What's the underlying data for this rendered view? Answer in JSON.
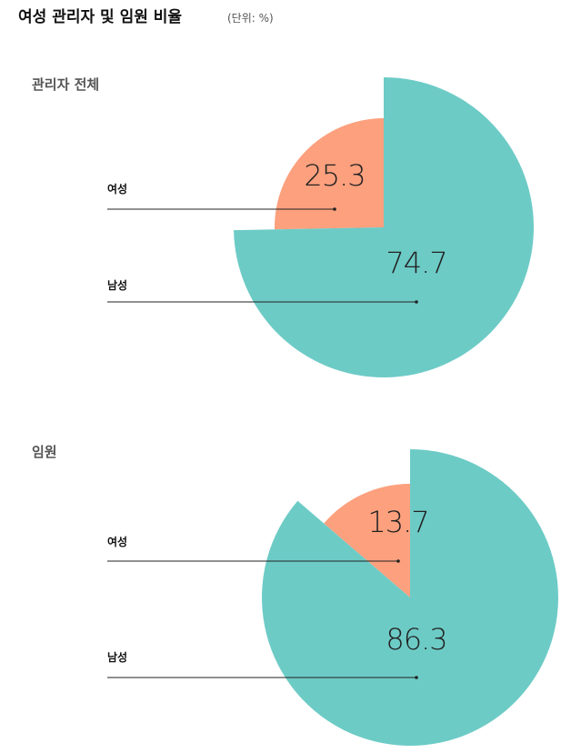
{
  "header": {
    "title": "여성 관리자 및 임원 비율",
    "unit": "(단위: %)"
  },
  "chart_data": [
    {
      "type": "pie",
      "subtitle": "관리자 전체",
      "categories": [
        "여성",
        "남성"
      ],
      "values": [
        25.3,
        74.7
      ],
      "colors": [
        "#fca07e",
        "#6dcbc6"
      ]
    },
    {
      "type": "pie",
      "subtitle": "임원",
      "categories": [
        "여성",
        "남성"
      ],
      "values": [
        13.7,
        86.3
      ],
      "colors": [
        "#fca07e",
        "#6dcbc6"
      ]
    }
  ]
}
